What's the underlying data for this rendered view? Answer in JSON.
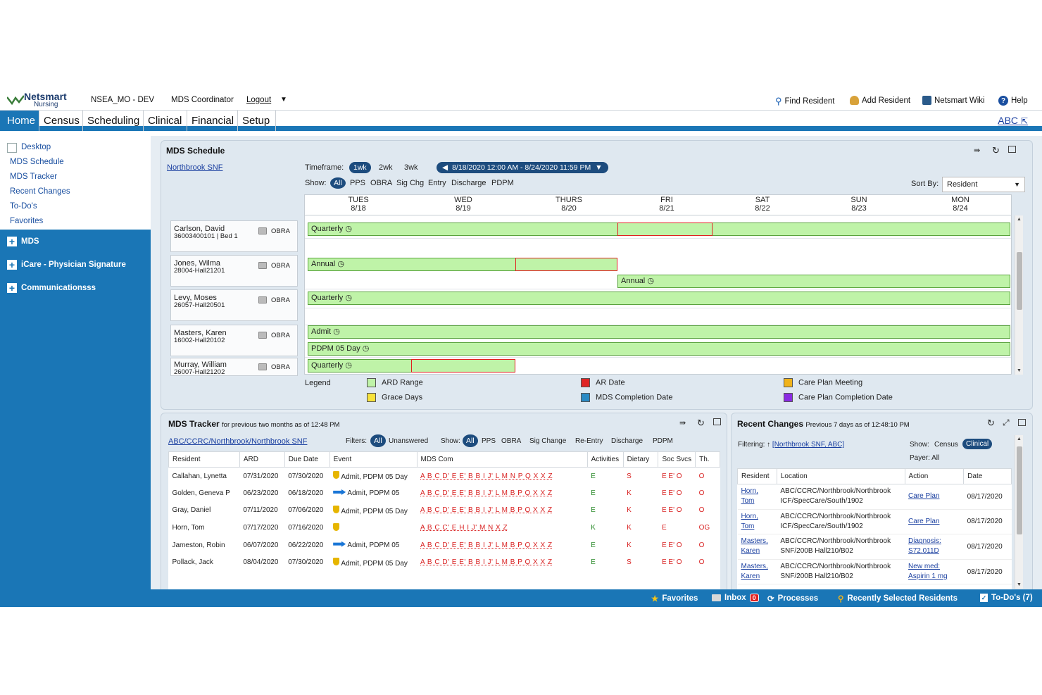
{
  "topbar": {
    "logo_name": "Netsmart",
    "logo_sub": "Nursing",
    "env": "NSEA_MO - DEV",
    "role": "MDS Coordinator",
    "logout": "Logout",
    "find_resident": "Find Resident",
    "add_resident": "Add Resident",
    "wiki": "Netsmart Wiki",
    "help": "Help"
  },
  "nav": {
    "tabs": [
      "Home",
      "Census",
      "Scheduling",
      "Clinical",
      "Financial",
      "Setup"
    ],
    "abc": "ABC"
  },
  "sidebar": {
    "links": [
      "Desktop",
      "MDS Schedule",
      "MDS Tracker",
      "Recent Changes",
      "To-Do's",
      "Favorites"
    ],
    "sections": [
      "MDS",
      "iCare - Physician Signature",
      "Communicationsss"
    ]
  },
  "schedule": {
    "title": "MDS Schedule",
    "facility": "Northbrook SNF",
    "timeframe_label": "Timeframe:",
    "timeframes": [
      "1wk",
      "2wk",
      "3wk"
    ],
    "range": "8/18/2020 12:00 AM - 8/24/2020 11:59 PM",
    "show_label": "Show:",
    "show_options": [
      "All",
      "PPS",
      "OBRA",
      "Sig Chg",
      "Entry",
      "Discharge",
      "PDPM"
    ],
    "sort_label": "Sort By:",
    "sort_value": "Resident",
    "days": [
      {
        "d": "TUES",
        "dt": "8/18"
      },
      {
        "d": "WED",
        "dt": "8/19"
      },
      {
        "d": "THURS",
        "dt": "8/20"
      },
      {
        "d": "FRI",
        "dt": "8/21"
      },
      {
        "d": "SAT",
        "dt": "8/22"
      },
      {
        "d": "SUN",
        "dt": "8/23"
      },
      {
        "d": "MON",
        "dt": "8/24"
      }
    ],
    "residents": [
      {
        "name": "Carlson, David",
        "id": "36003400101 |  Bed 1",
        "type": "OBRA"
      },
      {
        "name": "Jones, Wilma",
        "id": "28004-Hall21201",
        "type": "OBRA"
      },
      {
        "name": "Levy, Moses",
        "id": "26057-Hall20501",
        "type": "OBRA"
      },
      {
        "name": "Masters, Karen",
        "id": "16002-Hall20102",
        "type": "OBRA"
      },
      {
        "name": "Murray, William",
        "id": "26007-Hall21202",
        "type": "OBRA"
      }
    ],
    "bars": [
      "Quarterly",
      "Annual",
      "Annual",
      "Quarterly",
      "Admit",
      "PDPM 05 Day",
      "Quarterly"
    ],
    "legend_title": "Legend",
    "legend": [
      {
        "label": "ARD Range",
        "color": "#bff3a8"
      },
      {
        "label": "Grace Days",
        "color": "#f7e23a"
      },
      {
        "label": "AR Date",
        "color": "#e02424"
      },
      {
        "label": "MDS Completion Date",
        "color": "#2a8ac4"
      },
      {
        "label": "Care Plan Meeting",
        "color": "#f0b21a"
      },
      {
        "label": "Care Plan Completion Date",
        "color": "#8a2be2"
      }
    ]
  },
  "tracker": {
    "title": "MDS Tracker",
    "subtitle": "for previous two months as of 12:48 PM",
    "path": "ABC/CCRC/Northbrook/Northbrook SNF",
    "filters_label": "Filters:",
    "filters": [
      "All",
      "Unanswered"
    ],
    "show_label": "Show:",
    "show": [
      "All",
      "PPS",
      "OBRA",
      "Sig Change",
      "Re-Entry",
      "Discharge",
      "PDPM"
    ],
    "columns": [
      "Resident",
      "ARD",
      "Due Date",
      "Event",
      "MDS Com",
      "Activities",
      "Dietary",
      "Soc Svcs",
      "Th."
    ],
    "rows": [
      {
        "res": "Callahan, Lynetta",
        "ard": "07/31/2020",
        "due": "07/30/2020",
        "icon": "shield",
        "event": "Admit, PDPM 05 Day",
        "mds": "A B C D' E E' B B I J' L M N P Q X X Z",
        "act": "E",
        "diet": "S",
        "soc": "E E' O",
        "th": "O"
      },
      {
        "res": "Golden, Geneva P",
        "ard": "06/23/2020",
        "due": "06/18/2020",
        "icon": "arrow",
        "event": "Admit, PDPM 05",
        "mds": "A B C D' E E' B B I J' L M B P Q X X Z",
        "act": "E",
        "diet": "K",
        "soc": "E E' O",
        "th": "O"
      },
      {
        "res": "Gray, Daniel",
        "ard": "07/11/2020",
        "due": "07/06/2020",
        "icon": "shield",
        "event": "Admit, PDPM 05 Day",
        "mds": "A B C D' E E' B B I J' L M B P Q X X Z",
        "act": "E",
        "diet": "K",
        "soc": "E E' O",
        "th": "O"
      },
      {
        "res": "Horn, Tom",
        "ard": "07/17/2020",
        "due": "07/16/2020",
        "icon": "shield",
        "event": "",
        "mds": "A B C C' E H I J' M N X Z",
        "act": "K",
        "diet": "K",
        "soc": "E",
        "th": "OG"
      },
      {
        "res": "Jameston, Robin",
        "ard": "06/07/2020",
        "due": "06/22/2020",
        "icon": "arrow",
        "event": "Admit, PDPM 05",
        "mds": "A B C D' E E' B B I J' L M B P Q X X Z",
        "act": "E",
        "diet": "K",
        "soc": "E E' O",
        "th": "O"
      },
      {
        "res": "Pollack, Jack",
        "ard": "08/04/2020",
        "due": "07/30/2020",
        "icon": "shield",
        "event": "Admit, PDPM 05 Day",
        "mds": "A B C D' E E' B B I J' L M B P Q X X Z",
        "act": "E",
        "diet": "S",
        "soc": "E E' O",
        "th": "O"
      }
    ]
  },
  "recent": {
    "title": "Recent Changes",
    "subtitle": "Previous 7 days as of 12:48:10 PM",
    "filter_label": "Filtering:",
    "filter_value": "[Northbrook SNF, ABC]",
    "show_label": "Show:",
    "show": [
      "Census",
      "Clinical"
    ],
    "payer": "Payer:  All",
    "columns": [
      "Resident",
      "Location",
      "Action",
      "Date"
    ],
    "rows": [
      {
        "res1": "Horn,",
        "res2": "Tom",
        "loc1": "ABC/CCRC/Northbrook/Northbrook",
        "loc2": "ICF/SpecCare/South/1902",
        "act1": "Care Plan",
        "act2": "",
        "date": "08/17/2020"
      },
      {
        "res1": "Horn,",
        "res2": "Tom",
        "loc1": "ABC/CCRC/Northbrook/Northbrook",
        "loc2": "ICF/SpecCare/South/1902",
        "act1": "Care Plan",
        "act2": "",
        "date": "08/17/2020"
      },
      {
        "res1": "Masters,",
        "res2": "Karen",
        "loc1": "ABC/CCRC/Northbrook/Northbrook",
        "loc2": "SNF/200B Hall210/B02",
        "act1": "Diagnosis:",
        "act2": "S72.011D",
        "date": "08/17/2020"
      },
      {
        "res1": "Masters,",
        "res2": "Karen",
        "loc1": "ABC/CCRC/Northbrook/Northbrook",
        "loc2": "SNF/200B Hall210/B02",
        "act1": "New med:",
        "act2": "Aspirin 1 mg",
        "date": "08/17/2020"
      }
    ]
  },
  "bottombar": {
    "favorites": "Favorites",
    "inbox": "Inbox",
    "inbox_count": "0",
    "processes": "Processes",
    "recent_residents": "Recently Selected Residents",
    "todos": "To-Do's (7)"
  }
}
